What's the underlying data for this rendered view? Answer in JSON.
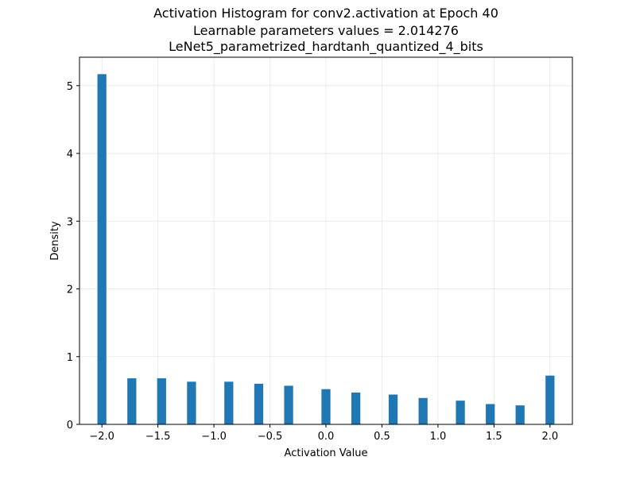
{
  "chart_data": {
    "type": "bar",
    "title": [
      "Activation Histogram for conv2.activation at Epoch 40",
      "Learnable parameters values = 2.014276",
      "LeNet5_parametrized_hardtanh_quantized_4_bits"
    ],
    "xlabel": "Activation Value",
    "ylabel": "Density",
    "xlim": [
      -2.2,
      2.2
    ],
    "ylim": [
      0,
      5.42
    ],
    "xticks": [
      -2.0,
      -1.5,
      -1.0,
      -0.5,
      0.0,
      0.5,
      1.0,
      1.5,
      2.0
    ],
    "xtick_labels": [
      "−2.0",
      "−1.5",
      "−1.0",
      "−0.5",
      "0.0",
      "0.5",
      "1.0",
      "1.5",
      "2.0"
    ],
    "yticks": [
      0,
      1,
      2,
      3,
      4,
      5
    ],
    "ytick_labels": [
      "0",
      "1",
      "2",
      "3",
      "4",
      "5"
    ],
    "grid": true,
    "bin_width": 0.08,
    "bar_color": "#1f77b4",
    "bars": [
      {
        "x": -2.0,
        "value": 5.17
      },
      {
        "x": -1.733,
        "value": 0.68
      },
      {
        "x": -1.467,
        "value": 0.68
      },
      {
        "x": -1.2,
        "value": 0.63
      },
      {
        "x": -0.867,
        "value": 0.63
      },
      {
        "x": -0.6,
        "value": 0.6
      },
      {
        "x": -0.333,
        "value": 0.57
      },
      {
        "x": 0.0,
        "value": 0.52
      },
      {
        "x": 0.267,
        "value": 0.47
      },
      {
        "x": 0.6,
        "value": 0.44
      },
      {
        "x": 0.867,
        "value": 0.39
      },
      {
        "x": 1.2,
        "value": 0.35
      },
      {
        "x": 1.467,
        "value": 0.3
      },
      {
        "x": 1.733,
        "value": 0.28
      },
      {
        "x": 2.0,
        "value": 0.72
      }
    ]
  }
}
